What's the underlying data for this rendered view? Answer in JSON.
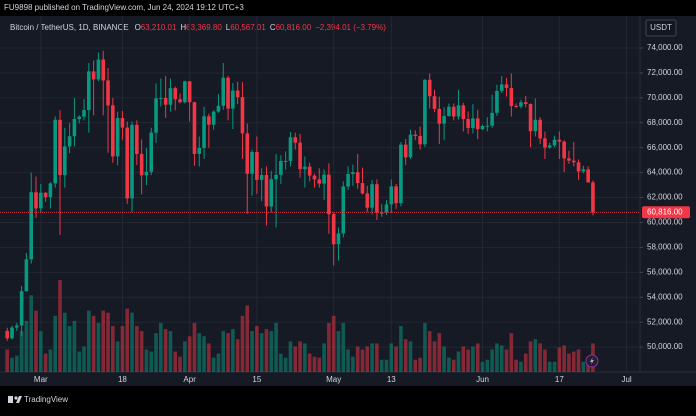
{
  "header": "FU9898 published on TradingView.com, Jun 24, 2024 19:12 UTC+3",
  "footer": "TradingView",
  "chart_data": {
    "type": "candlestick",
    "symbol": "Bitcoin / TetherUS, 1D, BINANCE",
    "legend": [
      {
        "label": "O",
        "value": "63,210.01"
      },
      {
        "label": "H",
        "value": "63,369.80"
      },
      {
        "label": "L",
        "value": "60,567.01"
      },
      {
        "label": "C",
        "value": "60,816.00"
      }
    ],
    "change": "−2,394.01 (−3.79%)",
    "currency": "USDT",
    "up_color": "#089981",
    "down_color": "#f23645",
    "grid": true,
    "last_price": {
      "value": 60816,
      "label": "60,816.00"
    },
    "ylim": [
      48000,
      76570
    ],
    "yticks": [
      {
        "value": 50000,
        "label": "50,000.00"
      },
      {
        "value": 52000,
        "label": "52,000.00"
      },
      {
        "value": 54000,
        "label": "54,000.00"
      },
      {
        "value": 56000,
        "label": "56,000.00"
      },
      {
        "value": 58000,
        "label": "58,000.00"
      },
      {
        "value": 60000,
        "label": "60,000.00"
      },
      {
        "value": 62000,
        "label": "62,000.00"
      },
      {
        "value": 64000,
        "label": "64,000.00"
      },
      {
        "value": 66000,
        "label": "66,000.00"
      },
      {
        "value": 68000,
        "label": "68,000.00"
      },
      {
        "value": 70000,
        "label": "70,000.00"
      },
      {
        "value": 72000,
        "label": "72,000.00"
      },
      {
        "value": 74000,
        "label": "74,000.00"
      }
    ],
    "xlim": [
      -1.5,
      131.8
    ],
    "xticks": [
      {
        "value": 7,
        "label": "Mar"
      },
      {
        "value": 24,
        "label": "18"
      },
      {
        "value": 38,
        "label": "Apr"
      },
      {
        "value": 52,
        "label": "15"
      },
      {
        "value": 68,
        "label": "May"
      },
      {
        "value": 80,
        "label": "13"
      },
      {
        "value": 99,
        "label": "Jun"
      },
      {
        "value": 115,
        "label": "17"
      },
      {
        "value": 129,
        "label": "Jul"
      }
    ],
    "ohlc": [
      [
        51300,
        51550,
        50500,
        50700
      ],
      [
        50700,
        51700,
        50600,
        51570
      ],
      [
        51570,
        51950,
        51300,
        51730
      ],
      [
        51730,
        54900,
        50900,
        54480
      ],
      [
        54480,
        57550,
        54450,
        57040
      ],
      [
        57040,
        64000,
        56700,
        62430
      ],
      [
        62430,
        63680,
        60370,
        61130
      ],
      [
        61130,
        63100,
        60780,
        62390
      ],
      [
        62390,
        62430,
        61660,
        62030
      ],
      [
        62030,
        63230,
        61120,
        63130
      ],
      [
        63130,
        68500,
        62800,
        68240
      ],
      [
        68240,
        69000,
        59000,
        63800
      ],
      [
        63800,
        67600,
        62800,
        66100
      ],
      [
        66100,
        67990,
        65550,
        66920
      ],
      [
        66920,
        69990,
        66100,
        68300
      ],
      [
        68300,
        68600,
        67950,
        68490
      ],
      [
        68490,
        69900,
        68200,
        69020
      ],
      [
        69020,
        72800,
        67200,
        72120
      ],
      [
        72120,
        73000,
        68600,
        71480
      ],
      [
        71480,
        73650,
        71340,
        73080
      ],
      [
        73080,
        73780,
        68600,
        71400
      ],
      [
        71400,
        72400,
        65600,
        69400
      ],
      [
        69400,
        70000,
        64800,
        65300
      ],
      [
        65300,
        68900,
        64600,
        68380
      ],
      [
        68380,
        68950,
        66600,
        67610
      ],
      [
        67610,
        68100,
        61500,
        61930
      ],
      [
        61930,
        68100,
        60800,
        67840
      ],
      [
        67840,
        68200,
        64600,
        65500
      ],
      [
        65500,
        66650,
        62260,
        63780
      ],
      [
        63780,
        65970,
        63000,
        64060
      ],
      [
        64060,
        67600,
        63800,
        67210
      ],
      [
        67210,
        71150,
        66400,
        69960
      ],
      [
        69960,
        71550,
        69300,
        69990
      ],
      [
        69990,
        71750,
        68400,
        69450
      ],
      [
        69450,
        71550,
        68900,
        70780
      ],
      [
        70780,
        70900,
        69000,
        69890
      ],
      [
        69890,
        70350,
        69550,
        69650
      ],
      [
        69650,
        71370,
        69550,
        71330
      ],
      [
        71330,
        71330,
        68100,
        69650
      ],
      [
        69650,
        69680,
        64550,
        65500
      ],
      [
        65500,
        66900,
        64500,
        65980
      ],
      [
        65980,
        69290,
        65100,
        68520
      ],
      [
        68520,
        68730,
        66000,
        67850
      ],
      [
        67850,
        69000,
        67450,
        68900
      ],
      [
        68900,
        70300,
        68800,
        69360
      ],
      [
        69360,
        72800,
        69050,
        71620
      ],
      [
        71620,
        71760,
        68200,
        69140
      ],
      [
        69140,
        71200,
        67500,
        70590
      ],
      [
        70590,
        71300,
        69500,
        70060
      ],
      [
        70060,
        71250,
        65100,
        67150
      ],
      [
        67150,
        67950,
        60700,
        63910
      ],
      [
        63910,
        65850,
        62150,
        65660
      ],
      [
        65660,
        66900,
        62300,
        63420
      ],
      [
        63420,
        64350,
        61700,
        63810
      ],
      [
        63810,
        64500,
        59750,
        61280
      ],
      [
        61280,
        64150,
        60800,
        63470
      ],
      [
        63470,
        65500,
        59600,
        63820
      ],
      [
        63820,
        65400,
        63100,
        64940
      ],
      [
        64940,
        65700,
        64250,
        64940
      ],
      [
        64940,
        67250,
        64500,
        66840
      ],
      [
        66840,
        67200,
        65850,
        66410
      ],
      [
        66410,
        67100,
        63600,
        64280
      ],
      [
        64280,
        65300,
        62800,
        64480
      ],
      [
        64480,
        64800,
        63300,
        63760
      ],
      [
        63760,
        63900,
        62800,
        63460
      ],
      [
        63460,
        64350,
        62800,
        63120
      ],
      [
        63120,
        64250,
        61800,
        63840
      ],
      [
        63840,
        64750,
        59100,
        60670
      ],
      [
        60670,
        60800,
        56550,
        58250
      ],
      [
        58250,
        59600,
        56950,
        59120
      ],
      [
        59120,
        63300,
        58800,
        62890
      ],
      [
        62890,
        64500,
        62600,
        63890
      ],
      [
        63890,
        64650,
        62950,
        64030
      ],
      [
        64030,
        65500,
        62700,
        63160
      ],
      [
        63160,
        64400,
        62250,
        62330
      ],
      [
        62330,
        62950,
        60850,
        61190
      ],
      [
        61190,
        63400,
        60650,
        63070
      ],
      [
        63070,
        63450,
        60200,
        60790
      ],
      [
        60790,
        61500,
        60450,
        60790
      ],
      [
        60790,
        61800,
        60600,
        61450
      ],
      [
        61450,
        63450,
        60750,
        62900
      ],
      [
        62900,
        63100,
        61100,
        61550
      ],
      [
        61550,
        66450,
        61300,
        66250
      ],
      [
        66250,
        66700,
        64600,
        65230
      ],
      [
        65230,
        67450,
        65100,
        67050
      ],
      [
        67050,
        67400,
        66600,
        66940
      ],
      [
        66940,
        67700,
        65850,
        66270
      ],
      [
        66270,
        71500,
        66050,
        71450
      ],
      [
        71450,
        71950,
        69150,
        70130
      ],
      [
        70130,
        70650,
        68850,
        69120
      ],
      [
        69120,
        70100,
        66300,
        67930
      ],
      [
        67930,
        69250,
        66600,
        68540
      ],
      [
        68540,
        69550,
        68500,
        69290
      ],
      [
        69290,
        69550,
        68200,
        68500
      ],
      [
        68500,
        70650,
        68250,
        69400
      ],
      [
        69400,
        69600,
        67300,
        68300
      ],
      [
        68300,
        68900,
        67100,
        67580
      ],
      [
        67580,
        69500,
        67150,
        68350
      ],
      [
        68350,
        69050,
        66700,
        67490
      ],
      [
        67490,
        67850,
        67400,
        67750
      ],
      [
        67750,
        68450,
        67300,
        67760
      ],
      [
        67760,
        70250,
        67600,
        68800
      ],
      [
        68800,
        71050,
        68550,
        70560
      ],
      [
        70560,
        71750,
        70400,
        71080
      ],
      [
        71080,
        71600,
        70100,
        70790
      ],
      [
        70790,
        71950,
        68500,
        69350
      ],
      [
        69350,
        69550,
        69200,
        69310
      ],
      [
        69310,
        69850,
        69150,
        69650
      ],
      [
        69650,
        70150,
        69250,
        69510
      ],
      [
        69510,
        69550,
        66050,
        67320
      ],
      [
        67320,
        69950,
        66900,
        68240
      ],
      [
        68240,
        68450,
        66300,
        66750
      ],
      [
        66750,
        67300,
        65100,
        66010
      ],
      [
        66010,
        66400,
        65900,
        66190
      ],
      [
        66190,
        66950,
        66050,
        66640
      ],
      [
        66640,
        67300,
        65100,
        66490
      ],
      [
        66490,
        66600,
        64050,
        65150
      ],
      [
        65150,
        65750,
        64700,
        64960
      ],
      [
        64960,
        66450,
        64500,
        64830
      ],
      [
        64830,
        65050,
        63400,
        64100
      ],
      [
        64100,
        64550,
        63950,
        64260
      ],
      [
        64260,
        64500,
        63200,
        63210
      ],
      [
        63210.01,
        63369.8,
        60567.01,
        60816
      ]
    ],
    "volume": [
      22,
      14,
      16,
      40,
      50,
      75,
      60,
      40,
      18,
      22,
      55,
      90,
      58,
      45,
      50,
      20,
      25,
      60,
      55,
      48,
      60,
      58,
      45,
      30,
      45,
      62,
      58,
      45,
      40,
      22,
      20,
      38,
      48,
      42,
      40,
      20,
      15,
      30,
      35,
      48,
      38,
      35,
      28,
      14,
      18,
      40,
      38,
      42,
      32,
      55,
      65,
      40,
      45,
      38,
      42,
      40,
      48,
      18,
      14,
      30,
      25,
      30,
      28,
      18,
      15,
      14,
      28,
      48,
      55,
      40,
      48,
      22,
      15,
      25,
      22,
      25,
      28,
      28,
      12,
      12,
      28,
      25,
      45,
      32,
      30,
      12,
      14,
      48,
      40,
      30,
      38,
      25,
      14,
      12,
      20,
      25,
      22,
      25,
      28,
      10,
      12,
      22,
      28,
      26,
      22,
      38,
      12,
      10,
      18,
      30,
      32,
      28,
      22,
      10,
      10,
      24,
      26,
      18,
      20,
      22,
      10,
      10,
      28
    ]
  }
}
